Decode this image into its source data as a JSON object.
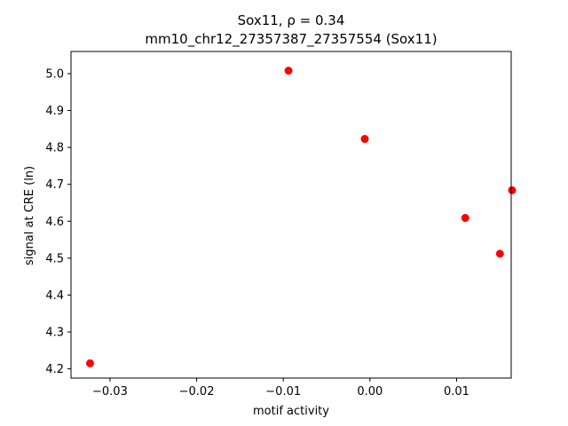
{
  "chart_data": {
    "type": "scatter",
    "title_line1": "Sox11, ρ = 0.34",
    "title_line2": "mm10_chr12_27357387_27357554 (Sox11)",
    "xlabel": "motif activity",
    "ylabel": "signal at CRE (ln)",
    "xlim": [
      -0.0345,
      0.0163
    ],
    "ylim": [
      4.175,
      5.06
    ],
    "x_ticks": [
      -0.03,
      -0.02,
      -0.01,
      0.0,
      0.01
    ],
    "x_tick_labels": [
      "−0.03",
      "−0.02",
      "−0.01",
      "0.00",
      "0.01"
    ],
    "y_ticks": [
      4.2,
      4.3,
      4.4,
      4.5,
      4.6,
      4.7,
      4.8,
      4.9,
      5.0
    ],
    "y_tick_labels": [
      "4.2",
      "4.3",
      "4.4",
      "4.5",
      "4.6",
      "4.7",
      "4.8",
      "4.9",
      "5.0"
    ],
    "points": [
      {
        "x": -0.0323,
        "y": 4.215
      },
      {
        "x": -0.0094,
        "y": 5.008
      },
      {
        "x": -0.0006,
        "y": 4.823
      },
      {
        "x": 0.011,
        "y": 4.609
      },
      {
        "x": 0.015,
        "y": 4.512
      },
      {
        "x": 0.0164,
        "y": 4.684
      }
    ],
    "marker_color": "#ff0000",
    "grid": false,
    "legend": "none"
  }
}
